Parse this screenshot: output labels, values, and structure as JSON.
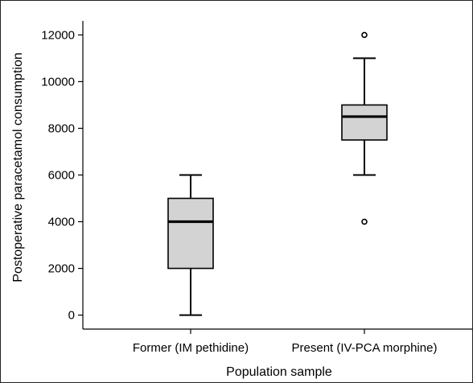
{
  "chart_data": {
    "type": "boxplot",
    "title": "",
    "xlabel": "Population sample",
    "ylabel": "Postoperative paracetamol consumption",
    "ylim": [
      -600,
      12600
    ],
    "yticks": [
      0,
      2000,
      4000,
      6000,
      8000,
      10000,
      12000
    ],
    "grid": false,
    "categories": [
      "Former (IM pethidine)",
      "Present (IV-PCA morphine)"
    ],
    "boxes": [
      {
        "category": "Former (IM pethidine)",
        "whisker_low": 0,
        "q1": 2000,
        "median": 4000,
        "q3": 5000,
        "whisker_high": 6000,
        "outliers": []
      },
      {
        "category": "Present (IV-PCA morphine)",
        "whisker_low": 6000,
        "q1": 7500,
        "median": 8500,
        "q3": 9000,
        "whisker_high": 11000,
        "outliers": [
          4000,
          12000
        ]
      }
    ],
    "box_fill": "#d3d3d3",
    "line_color": "#000000"
  }
}
